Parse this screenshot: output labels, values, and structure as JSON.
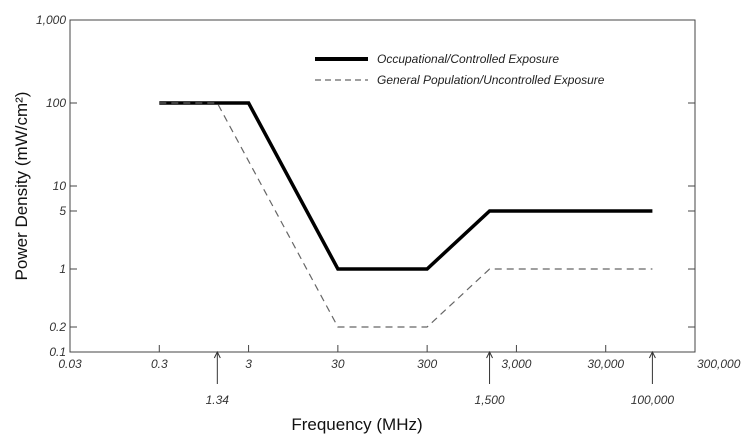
{
  "chart_data": {
    "type": "line",
    "xlabel": "Frequency (MHz)",
    "ylabel": "Power Density (mW/cm²)",
    "xscale": "log",
    "yscale": "log",
    "xlim": [
      0.03,
      300000
    ],
    "ylim": [
      0.1,
      1000
    ],
    "x_ticks": [
      {
        "value": 0.03,
        "label": "0.03"
      },
      {
        "value": 0.3,
        "label": "0.3"
      },
      {
        "value": 3,
        "label": "3"
      },
      {
        "value": 30,
        "label": "30"
      },
      {
        "value": 300,
        "label": "300"
      },
      {
        "value": 3000,
        "label": "3,000"
      },
      {
        "value": 30000,
        "label": "30,000"
      },
      {
        "value": 300000,
        "label": "300,000"
      }
    ],
    "x_annotations": [
      {
        "value": 1.34,
        "label": "1.34"
      },
      {
        "value": 1500,
        "label": "1,500"
      },
      {
        "value": 100000,
        "label": "100,000"
      }
    ],
    "y_ticks": [
      {
        "value": 1000,
        "label": "1,000"
      },
      {
        "value": 100,
        "label": "100"
      },
      {
        "value": 10,
        "label": "10"
      },
      {
        "value": 5,
        "label": "5"
      },
      {
        "value": 1,
        "label": "1"
      },
      {
        "value": 0.2,
        "label": "0.2"
      },
      {
        "value": 0.1,
        "label": "0.1"
      }
    ],
    "legend_position": "top-right",
    "grid": false,
    "series": [
      {
        "name": "Occupational/Controlled Exposure",
        "style": "solid-thick",
        "color": "#000000",
        "points": [
          [
            0.3,
            100
          ],
          [
            3,
            100
          ],
          [
            30,
            1
          ],
          [
            300,
            1
          ],
          [
            1500,
            5
          ],
          [
            100000,
            5
          ]
        ]
      },
      {
        "name": "General Population/Uncontrolled Exposure",
        "style": "dashed",
        "color": "#666666",
        "points": [
          [
            0.3,
            100
          ],
          [
            1.34,
            100
          ],
          [
            30,
            0.2
          ],
          [
            300,
            0.2
          ],
          [
            1500,
            1
          ],
          [
            100000,
            1
          ]
        ]
      }
    ]
  }
}
